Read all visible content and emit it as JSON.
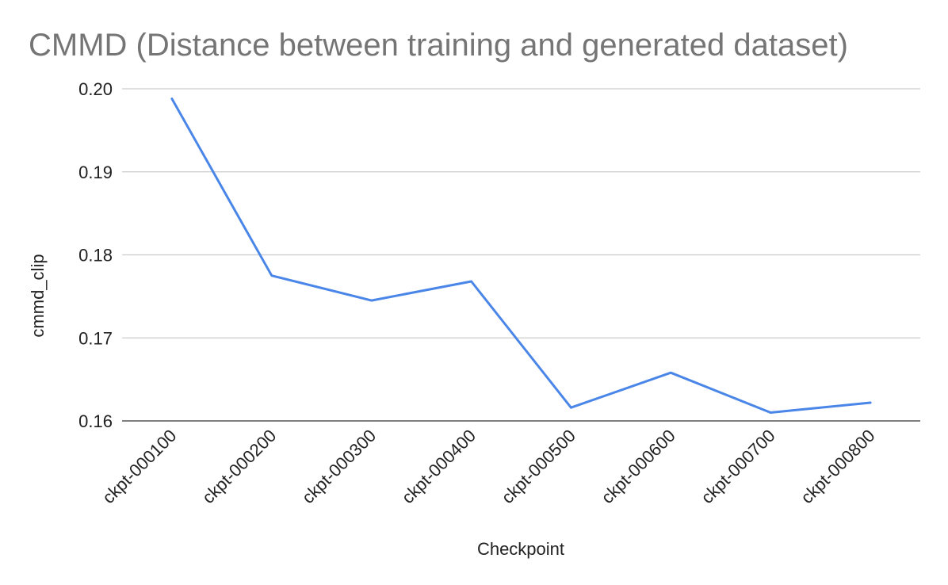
{
  "chart_data": {
    "type": "line",
    "title": "CMMD (Distance between training and generated dataset)",
    "xlabel": "Checkpoint",
    "ylabel": "cmmd_clip",
    "categories": [
      "ckpt-000100",
      "ckpt-000200",
      "ckpt-000300",
      "ckpt-000400",
      "ckpt-000500",
      "ckpt-000600",
      "ckpt-000700",
      "ckpt-000800"
    ],
    "series": [
      {
        "values": [
          0.1988,
          0.1775,
          0.1745,
          0.1768,
          0.1616,
          0.1658,
          0.161,
          0.1622
        ],
        "color": "#4a86e8"
      }
    ],
    "ylim": [
      0.16,
      0.2
    ],
    "yticks": [
      "0.20",
      "0.19",
      "0.18",
      "0.17",
      "0.16"
    ],
    "grid": true,
    "legend": "none"
  }
}
